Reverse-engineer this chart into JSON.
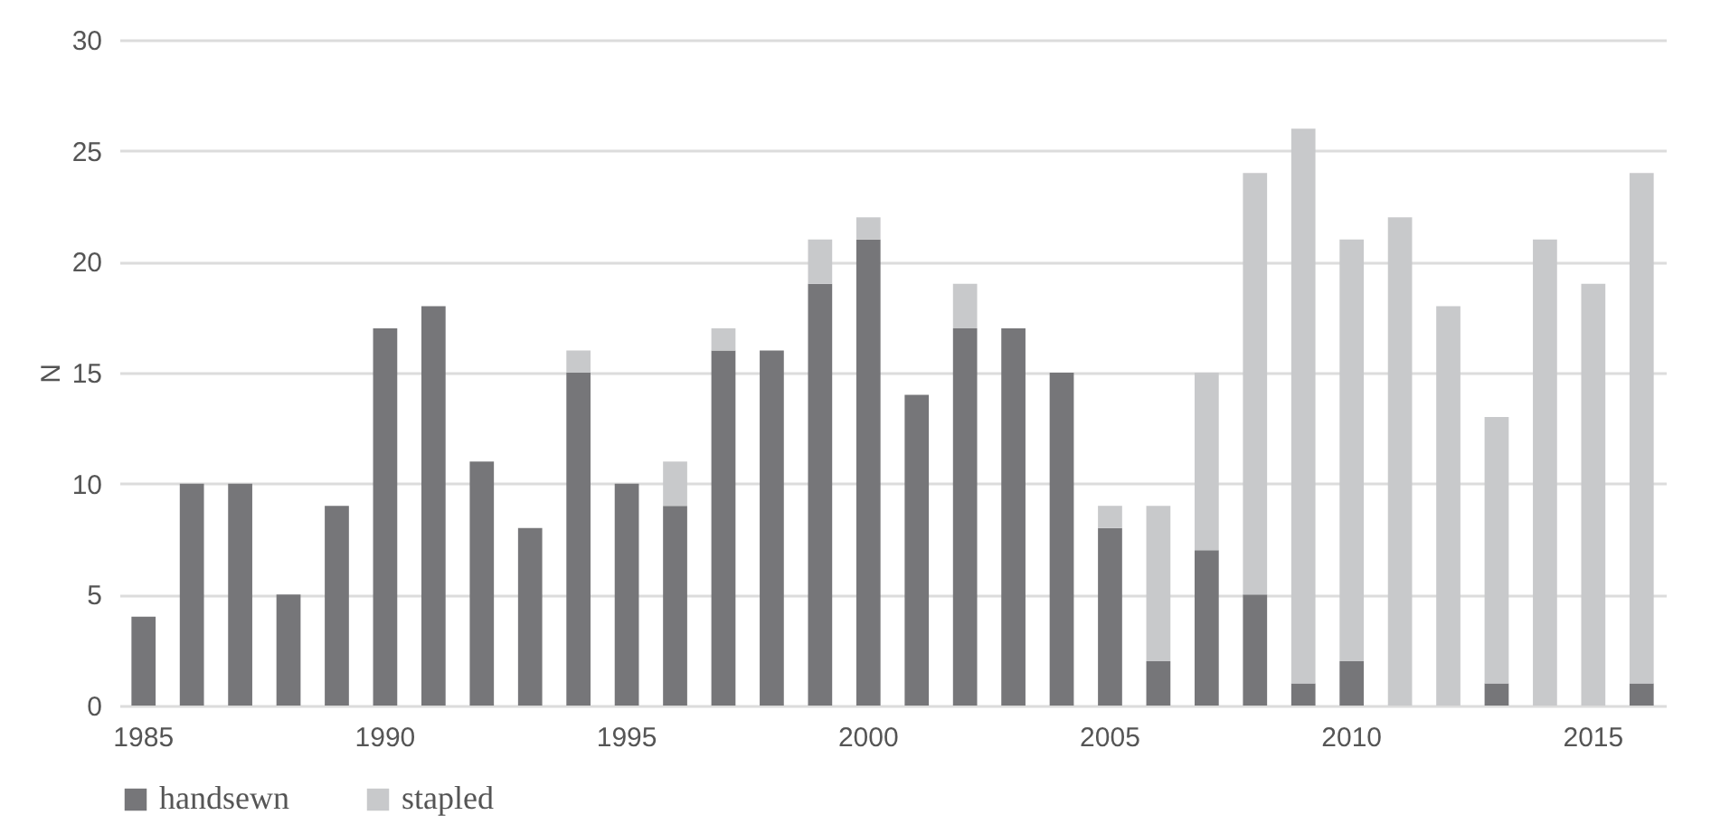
{
  "chart_data": {
    "type": "bar",
    "stacked": true,
    "ylabel": "N",
    "categories": [
      "1985",
      null,
      null,
      null,
      null,
      "1990",
      null,
      null,
      null,
      null,
      "1995",
      null,
      null,
      null,
      null,
      "2000",
      null,
      null,
      null,
      null,
      "2005",
      null,
      null,
      null,
      null,
      "2010",
      null,
      null,
      null,
      null,
      "2015",
      null
    ],
    "series": [
      {
        "name": "handsewn",
        "color": "#767679",
        "values": [
          4,
          10,
          10,
          5,
          9,
          17,
          18,
          11,
          8,
          15,
          10,
          9,
          16,
          16,
          19,
          21,
          14,
          17,
          17,
          15,
          8,
          2,
          7,
          5,
          1,
          2,
          0,
          0,
          1,
          0,
          0,
          1
        ]
      },
      {
        "name": "stapled",
        "color": "#c8c9cb",
        "values": [
          0,
          0,
          0,
          0,
          0,
          0,
          0,
          0,
          0,
          1,
          0,
          2,
          1,
          0,
          2,
          1,
          0,
          2,
          0,
          0,
          1,
          7,
          8,
          19,
          25,
          19,
          22,
          18,
          12,
          21,
          19,
          23
        ]
      }
    ],
    "ylim": [
      0,
      30
    ],
    "yticks": [
      0,
      5,
      10,
      15,
      20,
      25,
      30
    ],
    "grid": "y",
    "legend": "bottom"
  }
}
